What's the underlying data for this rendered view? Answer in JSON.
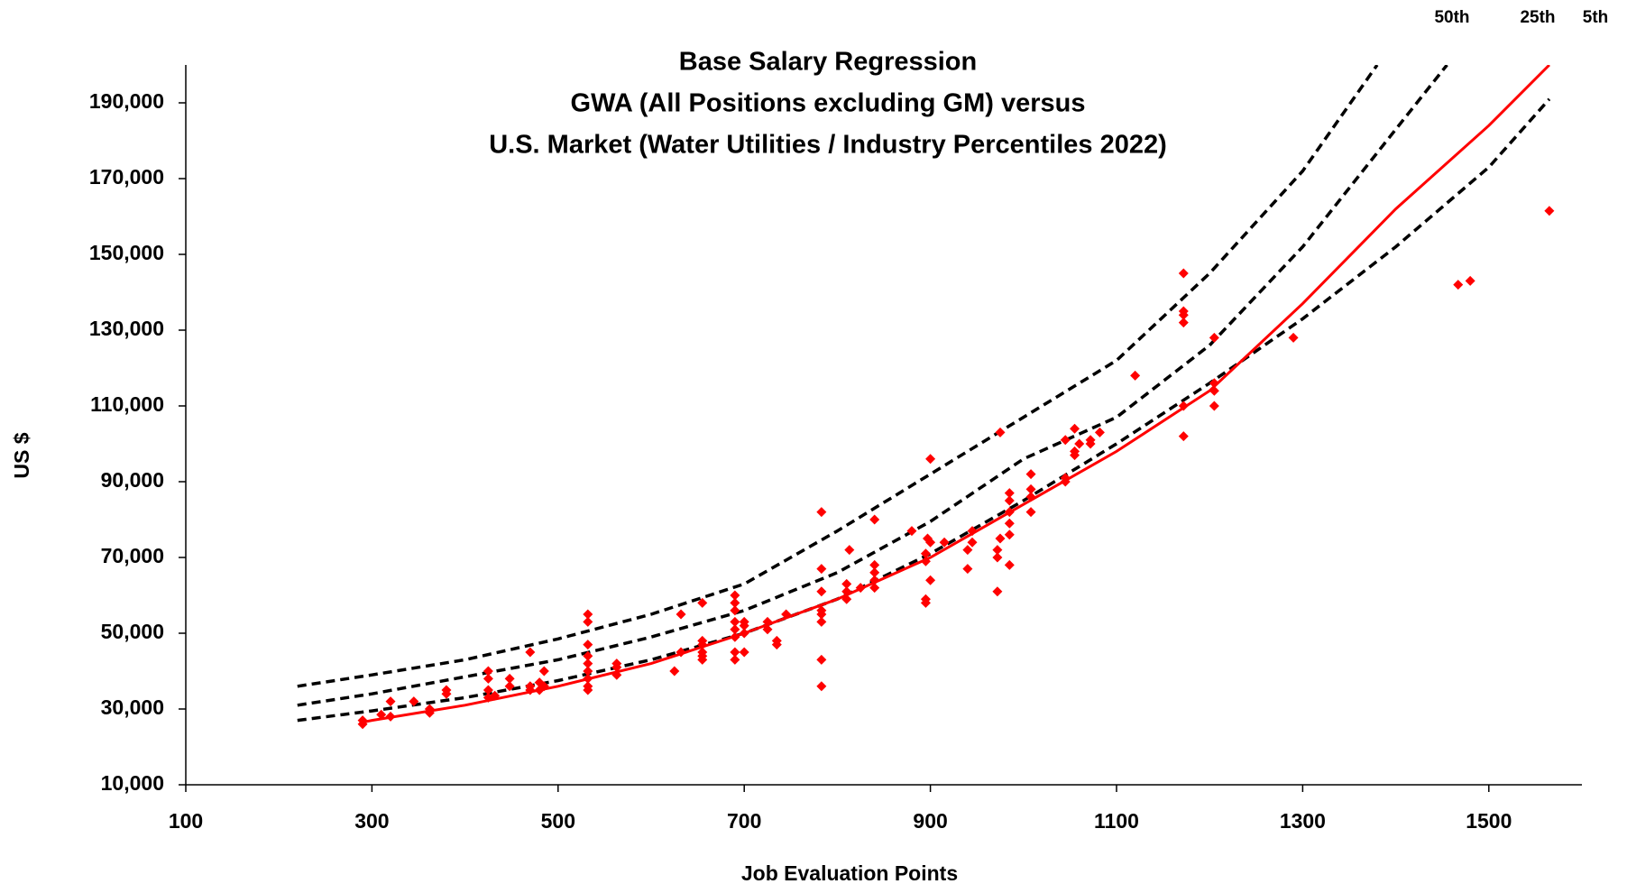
{
  "chart_data": {
    "type": "scatter",
    "title": [
      "Base Salary Regression",
      "GWA (All Positions excluding GM) versus",
      "U.S. Market (Water Utilities / Industry Percentiles 2022)"
    ],
    "x_label": "Job Evaluation Points",
    "y_label": "US $",
    "xlim": [
      100,
      1600
    ],
    "ylim": [
      10000,
      200000
    ],
    "xticks": [
      100,
      300,
      500,
      700,
      900,
      1100,
      1300,
      1500
    ],
    "yticks": [
      {
        "value": 10000,
        "label": "10,000"
      },
      {
        "value": 30000,
        "label": "30,000"
      },
      {
        "value": 50000,
        "label": "50,000"
      },
      {
        "value": 70000,
        "label": "70,000"
      },
      {
        "value": 90000,
        "label": "90,000"
      },
      {
        "value": 110000,
        "label": "110,000"
      },
      {
        "value": 130000,
        "label": "130,000"
      },
      {
        "value": 150000,
        "label": "150,000"
      },
      {
        "value": 170000,
        "label": "170,000"
      },
      {
        "value": 190000,
        "label": "190,000"
      }
    ],
    "points": {
      "color": "#ff0000",
      "x": [
        290,
        290,
        310,
        320,
        320,
        345,
        362,
        362,
        380,
        380,
        425,
        425,
        425,
        425,
        432,
        448,
        448,
        470,
        470,
        470,
        480,
        480,
        485,
        485,
        532,
        532,
        532,
        532,
        532,
        532,
        532,
        532,
        532,
        563,
        563,
        563,
        625,
        632,
        632,
        655,
        655,
        655,
        655,
        655,
        655,
        690,
        690,
        690,
        690,
        690,
        690,
        690,
        690,
        700,
        700,
        700,
        700,
        725,
        725,
        735,
        735,
        745,
        783,
        783,
        783,
        783,
        783,
        783,
        783,
        783,
        810,
        810,
        810,
        813,
        825,
        840,
        840,
        840,
        840,
        840,
        880,
        895,
        895,
        895,
        895,
        897,
        900,
        900,
        900,
        915,
        940,
        940,
        945,
        945,
        972,
        972,
        972,
        975,
        975,
        985,
        985,
        985,
        985,
        985,
        985,
        1008,
        1008,
        1008,
        1008,
        1045,
        1045,
        1045,
        1055,
        1055,
        1055,
        1060,
        1072,
        1072,
        1082,
        1120,
        1172,
        1172,
        1172,
        1172,
        1172,
        1172,
        1205,
        1205,
        1205,
        1205,
        1290,
        1467,
        1480,
        1565
      ],
      "values": [
        26000,
        27000,
        28500,
        28000,
        32000,
        32000,
        29000,
        30000,
        34000,
        35000,
        33000,
        35000,
        38000,
        40000,
        33500,
        36000,
        38000,
        35000,
        36000,
        45000,
        35000,
        37000,
        36000,
        40000,
        35000,
        36000,
        38000,
        40000,
        42000,
        44000,
        47000,
        53000,
        55000,
        39000,
        41000,
        42000,
        40000,
        45000,
        55000,
        43000,
        44000,
        45000,
        47000,
        48000,
        58000,
        43000,
        45000,
        49000,
        51000,
        53000,
        56000,
        58000,
        60000,
        45000,
        50000,
        52000,
        53000,
        51000,
        53000,
        47000,
        48000,
        55000,
        36000,
        43000,
        53000,
        55000,
        56000,
        61000,
        67000,
        82000,
        59000,
        61000,
        63000,
        72000,
        62000,
        62000,
        64000,
        66000,
        68000,
        80000,
        77000,
        58000,
        59000,
        69000,
        71000,
        75000,
        64000,
        74000,
        96000,
        74000,
        67000,
        72000,
        74000,
        77000,
        61000,
        70000,
        72000,
        75000,
        103000,
        68000,
        76000,
        79000,
        82000,
        85000,
        87000,
        82000,
        86000,
        88000,
        92000,
        90000,
        91000,
        101000,
        97000,
        98000,
        104000,
        100000,
        100000,
        101000,
        103000,
        118000,
        102000,
        110000,
        132000,
        134000,
        135000,
        145000,
        110000,
        114000,
        116000,
        128000,
        128000,
        142000,
        143000,
        161500
      ]
    },
    "fit": {
      "color": "#ff0000",
      "x": [
        290,
        300,
        400,
        500,
        600,
        700,
        800,
        900,
        1000,
        1100,
        1200,
        1300,
        1400,
        1500,
        1565
      ],
      "values": [
        26500,
        27000,
        31000,
        36000,
        42000,
        50000,
        59000,
        70000,
        84000,
        98000,
        114000,
        137000,
        162000,
        184000,
        200000
      ]
    },
    "curves": [
      {
        "name": "50th",
        "color": "#000000",
        "dashed": true,
        "x": [
          220,
          300,
          400,
          500,
          600,
          700,
          800,
          900,
          1000,
          1100,
          1200,
          1300,
          1380
        ],
        "values": [
          36000,
          39000,
          43000,
          48500,
          55000,
          63000,
          77000,
          92000,
          107000,
          122000,
          145000,
          172000,
          200000
        ]
      },
      {
        "name": "25th",
        "color": "#000000",
        "dashed": true,
        "x": [
          220,
          300,
          400,
          500,
          600,
          700,
          800,
          900,
          1000,
          1100,
          1200,
          1300,
          1400,
          1455
        ],
        "values": [
          31000,
          34000,
          38500,
          43000,
          49000,
          56000,
          66000,
          79500,
          96000,
          107000,
          126000,
          152000,
          183000,
          200000
        ]
      },
      {
        "name": "5th",
        "color": "#000000",
        "dashed": true,
        "x": [
          220,
          300,
          400,
          500,
          600,
          700,
          800,
          900,
          1000,
          1100,
          1200,
          1300,
          1400,
          1500,
          1565
        ],
        "values": [
          27000,
          29500,
          33000,
          37500,
          43000,
          50000,
          59000,
          71000,
          85000,
          100000,
          116000,
          133000,
          152000,
          173000,
          191000
        ]
      }
    ]
  }
}
